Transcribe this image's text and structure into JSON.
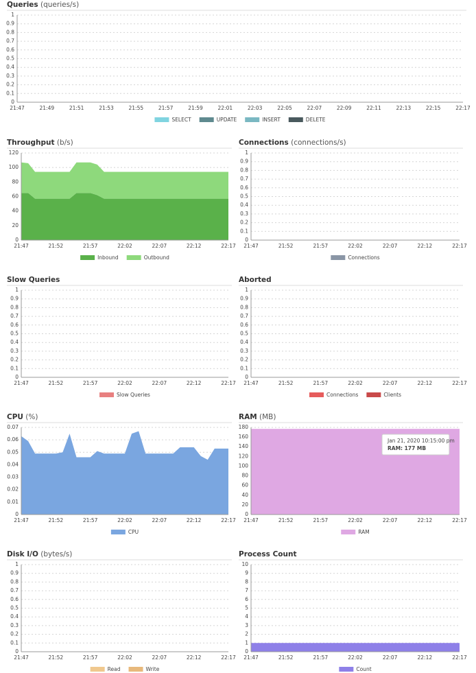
{
  "chart_data": [
    {
      "type": "area",
      "title": "Queries",
      "unit": "(queries/s)",
      "xticks": [
        "21:47",
        "21:49",
        "21:51",
        "21:53",
        "21:55",
        "21:57",
        "21:59",
        "22:01",
        "22:03",
        "22:05",
        "22:07",
        "22:09",
        "22:11",
        "22:13",
        "22:15",
        "22:17"
      ],
      "ylim": [
        0,
        1
      ],
      "yticks": [
        0,
        0.1,
        0.2,
        0.3,
        0.4,
        0.5,
        0.6,
        0.7,
        0.8,
        0.9,
        1
      ],
      "grid": true,
      "series": [
        {
          "name": "SELECT",
          "color": "#80d4e0"
        },
        {
          "name": "UPDATE",
          "color": "#5f8a8f"
        },
        {
          "name": "INSERT",
          "color": "#7ab8c2"
        },
        {
          "name": "DELETE",
          "color": "#4a5a5e"
        }
      ]
    },
    {
      "type": "area",
      "stacked": true,
      "title": "Throughput",
      "unit": "(b/s)",
      "x": [
        "21:47",
        "21:48",
        "21:49",
        "21:50",
        "21:51",
        "21:52",
        "21:53",
        "21:54",
        "21:55",
        "21:56",
        "21:57",
        "21:58",
        "21:59",
        "22:00",
        "22:01",
        "22:02",
        "22:03",
        "22:04",
        "22:05",
        "22:06",
        "22:07",
        "22:08",
        "22:09",
        "22:10",
        "22:11",
        "22:12",
        "22:13",
        "22:14",
        "22:15",
        "22:16",
        "22:17"
      ],
      "xticks": [
        "21:47",
        "21:52",
        "21:57",
        "22:02",
        "22:07",
        "22:12",
        "22:17"
      ],
      "ylim": [
        0,
        120
      ],
      "yticks": [
        0,
        20,
        40,
        60,
        80,
        100,
        120
      ],
      "grid": true,
      "series": [
        {
          "name": "Inbound",
          "color": "#5ab14a",
          "values": [
            65,
            65,
            57,
            57,
            57,
            57,
            57,
            57,
            65,
            65,
            65,
            62,
            57,
            57,
            57,
            57,
            57,
            57,
            57,
            57,
            57,
            57,
            57,
            57,
            57,
            57,
            57,
            57,
            57,
            57,
            57
          ]
        },
        {
          "name": "Outbound",
          "color": "#8ed97c",
          "values": [
            42,
            41,
            37,
            37,
            37,
            37,
            37,
            37,
            42,
            42,
            42,
            42,
            37,
            37,
            37,
            37,
            37,
            37,
            37,
            37,
            37,
            37,
            37,
            37,
            37,
            37,
            37,
            37,
            37,
            37,
            37
          ]
        }
      ]
    },
    {
      "type": "area",
      "title": "Connections",
      "unit": "(connections/s)",
      "xticks": [
        "21:47",
        "21:52",
        "21:57",
        "22:02",
        "22:07",
        "22:12",
        "22:17"
      ],
      "ylim": [
        0,
        1
      ],
      "yticks": [
        0,
        0.1,
        0.2,
        0.3,
        0.4,
        0.5,
        0.6,
        0.7,
        0.8,
        0.9,
        1
      ],
      "grid": true,
      "series": [
        {
          "name": "Connections",
          "color": "#8a96a6"
        }
      ]
    },
    {
      "type": "area",
      "title": "Slow Queries",
      "xticks": [
        "21:47",
        "21:52",
        "21:57",
        "22:02",
        "22:07",
        "22:12",
        "22:17"
      ],
      "ylim": [
        0,
        1
      ],
      "yticks": [
        0,
        0.1,
        0.2,
        0.3,
        0.4,
        0.5,
        0.6,
        0.7,
        0.8,
        0.9,
        1
      ],
      "grid": true,
      "series": [
        {
          "name": "Slow Queries",
          "color": "#e88080"
        }
      ]
    },
    {
      "type": "area",
      "title": "Aborted",
      "xticks": [
        "21:47",
        "21:52",
        "21:57",
        "22:02",
        "22:07",
        "22:12",
        "22:17"
      ],
      "ylim": [
        0,
        1
      ],
      "yticks": [
        0,
        0.1,
        0.2,
        0.3,
        0.4,
        0.5,
        0.6,
        0.7,
        0.8,
        0.9,
        1
      ],
      "grid": true,
      "series": [
        {
          "name": "Connections",
          "color": "#e65c5c"
        },
        {
          "name": "Clients",
          "color": "#c94a4a"
        }
      ]
    },
    {
      "type": "area",
      "title": "CPU",
      "unit": "(%)",
      "x": [
        "21:47",
        "21:48",
        "21:49",
        "21:50",
        "21:51",
        "21:52",
        "21:53",
        "21:54",
        "21:55",
        "21:56",
        "21:57",
        "21:58",
        "21:59",
        "22:00",
        "22:01",
        "22:02",
        "22:03",
        "22:04",
        "22:05",
        "22:06",
        "22:07",
        "22:08",
        "22:09",
        "22:10",
        "22:11",
        "22:12",
        "22:13",
        "22:14",
        "22:15",
        "22:16",
        "22:17"
      ],
      "xticks": [
        "21:47",
        "21:52",
        "21:57",
        "22:02",
        "22:07",
        "22:12",
        "22:17"
      ],
      "ylim": [
        0,
        0.07
      ],
      "yticks": [
        0,
        0.01,
        0.02,
        0.03,
        0.04,
        0.05,
        0.06,
        0.07
      ],
      "grid": true,
      "series": [
        {
          "name": "CPU",
          "color": "#7aa6e0",
          "values": [
            0.063,
            0.059,
            0.049,
            0.049,
            0.049,
            0.049,
            0.05,
            0.065,
            0.046,
            0.046,
            0.046,
            0.051,
            0.049,
            0.049,
            0.049,
            0.049,
            0.065,
            0.067,
            0.049,
            0.049,
            0.049,
            0.049,
            0.049,
            0.054,
            0.054,
            0.054,
            0.047,
            0.044,
            0.053,
            0.053,
            0.053
          ]
        }
      ]
    },
    {
      "type": "area",
      "title": "RAM",
      "unit": "(MB)",
      "x": [
        "21:47",
        "21:48",
        "21:49",
        "21:50",
        "21:51",
        "21:52",
        "21:53",
        "21:54",
        "21:55",
        "21:56",
        "21:57",
        "21:58",
        "21:59",
        "22:00",
        "22:01",
        "22:02",
        "22:03",
        "22:04",
        "22:05",
        "22:06",
        "22:07",
        "22:08",
        "22:09",
        "22:10",
        "22:11",
        "22:12",
        "22:13",
        "22:14",
        "22:15",
        "22:16",
        "22:17"
      ],
      "xticks": [
        "21:47",
        "21:52",
        "21:57",
        "22:02",
        "22:07",
        "22:12",
        "22:17"
      ],
      "ylim": [
        0,
        180
      ],
      "yticks": [
        0,
        20,
        40,
        60,
        80,
        100,
        120,
        140,
        160,
        180
      ],
      "grid": true,
      "series": [
        {
          "name": "RAM",
          "color": "#dfa8e3",
          "values": [
            177,
            177,
            177,
            177,
            177,
            177,
            177,
            177,
            177,
            177,
            177,
            177,
            177,
            177,
            177,
            177,
            177,
            177,
            177,
            177,
            177,
            177,
            177,
            177,
            177,
            177,
            177,
            177,
            177,
            177,
            177
          ]
        }
      ],
      "tooltip": {
        "title": "Jan 21, 2020 10:15:00 pm",
        "text": "RAM: 177 MB"
      }
    },
    {
      "type": "area",
      "title": "Disk I/O",
      "unit": "(bytes/s)",
      "xticks": [
        "21:47",
        "21:52",
        "21:57",
        "22:02",
        "22:07",
        "22:12",
        "22:17"
      ],
      "ylim": [
        0,
        1
      ],
      "yticks": [
        0,
        0.1,
        0.2,
        0.3,
        0.4,
        0.5,
        0.6,
        0.7,
        0.8,
        0.9,
        1
      ],
      "grid": true,
      "series": [
        {
          "name": "Read",
          "color": "#f0c88e"
        },
        {
          "name": "Write",
          "color": "#e8b97c"
        }
      ]
    },
    {
      "type": "area",
      "title": "Process Count",
      "x": [
        "21:47",
        "21:48",
        "21:49",
        "21:50",
        "21:51",
        "21:52",
        "21:53",
        "21:54",
        "21:55",
        "21:56",
        "21:57",
        "21:58",
        "21:59",
        "22:00",
        "22:01",
        "22:02",
        "22:03",
        "22:04",
        "22:05",
        "22:06",
        "22:07",
        "22:08",
        "22:09",
        "22:10",
        "22:11",
        "22:12",
        "22:13",
        "22:14",
        "22:15",
        "22:16",
        "22:17"
      ],
      "xticks": [
        "21:47",
        "21:52",
        "21:57",
        "22:02",
        "22:07",
        "22:12",
        "22:17"
      ],
      "ylim": [
        0,
        10
      ],
      "yticks": [
        0,
        1,
        2,
        3,
        4,
        5,
        6,
        7,
        8,
        9,
        10
      ],
      "grid": true,
      "series": [
        {
          "name": "Count",
          "color": "#8e80e8",
          "values": [
            1,
            1,
            1,
            1,
            1,
            1,
            1,
            1,
            1,
            1,
            1,
            1,
            1,
            1,
            1,
            1,
            1,
            1,
            1,
            1,
            1,
            1,
            1,
            1,
            1,
            1,
            1,
            1,
            1,
            1,
            1
          ]
        }
      ]
    }
  ]
}
